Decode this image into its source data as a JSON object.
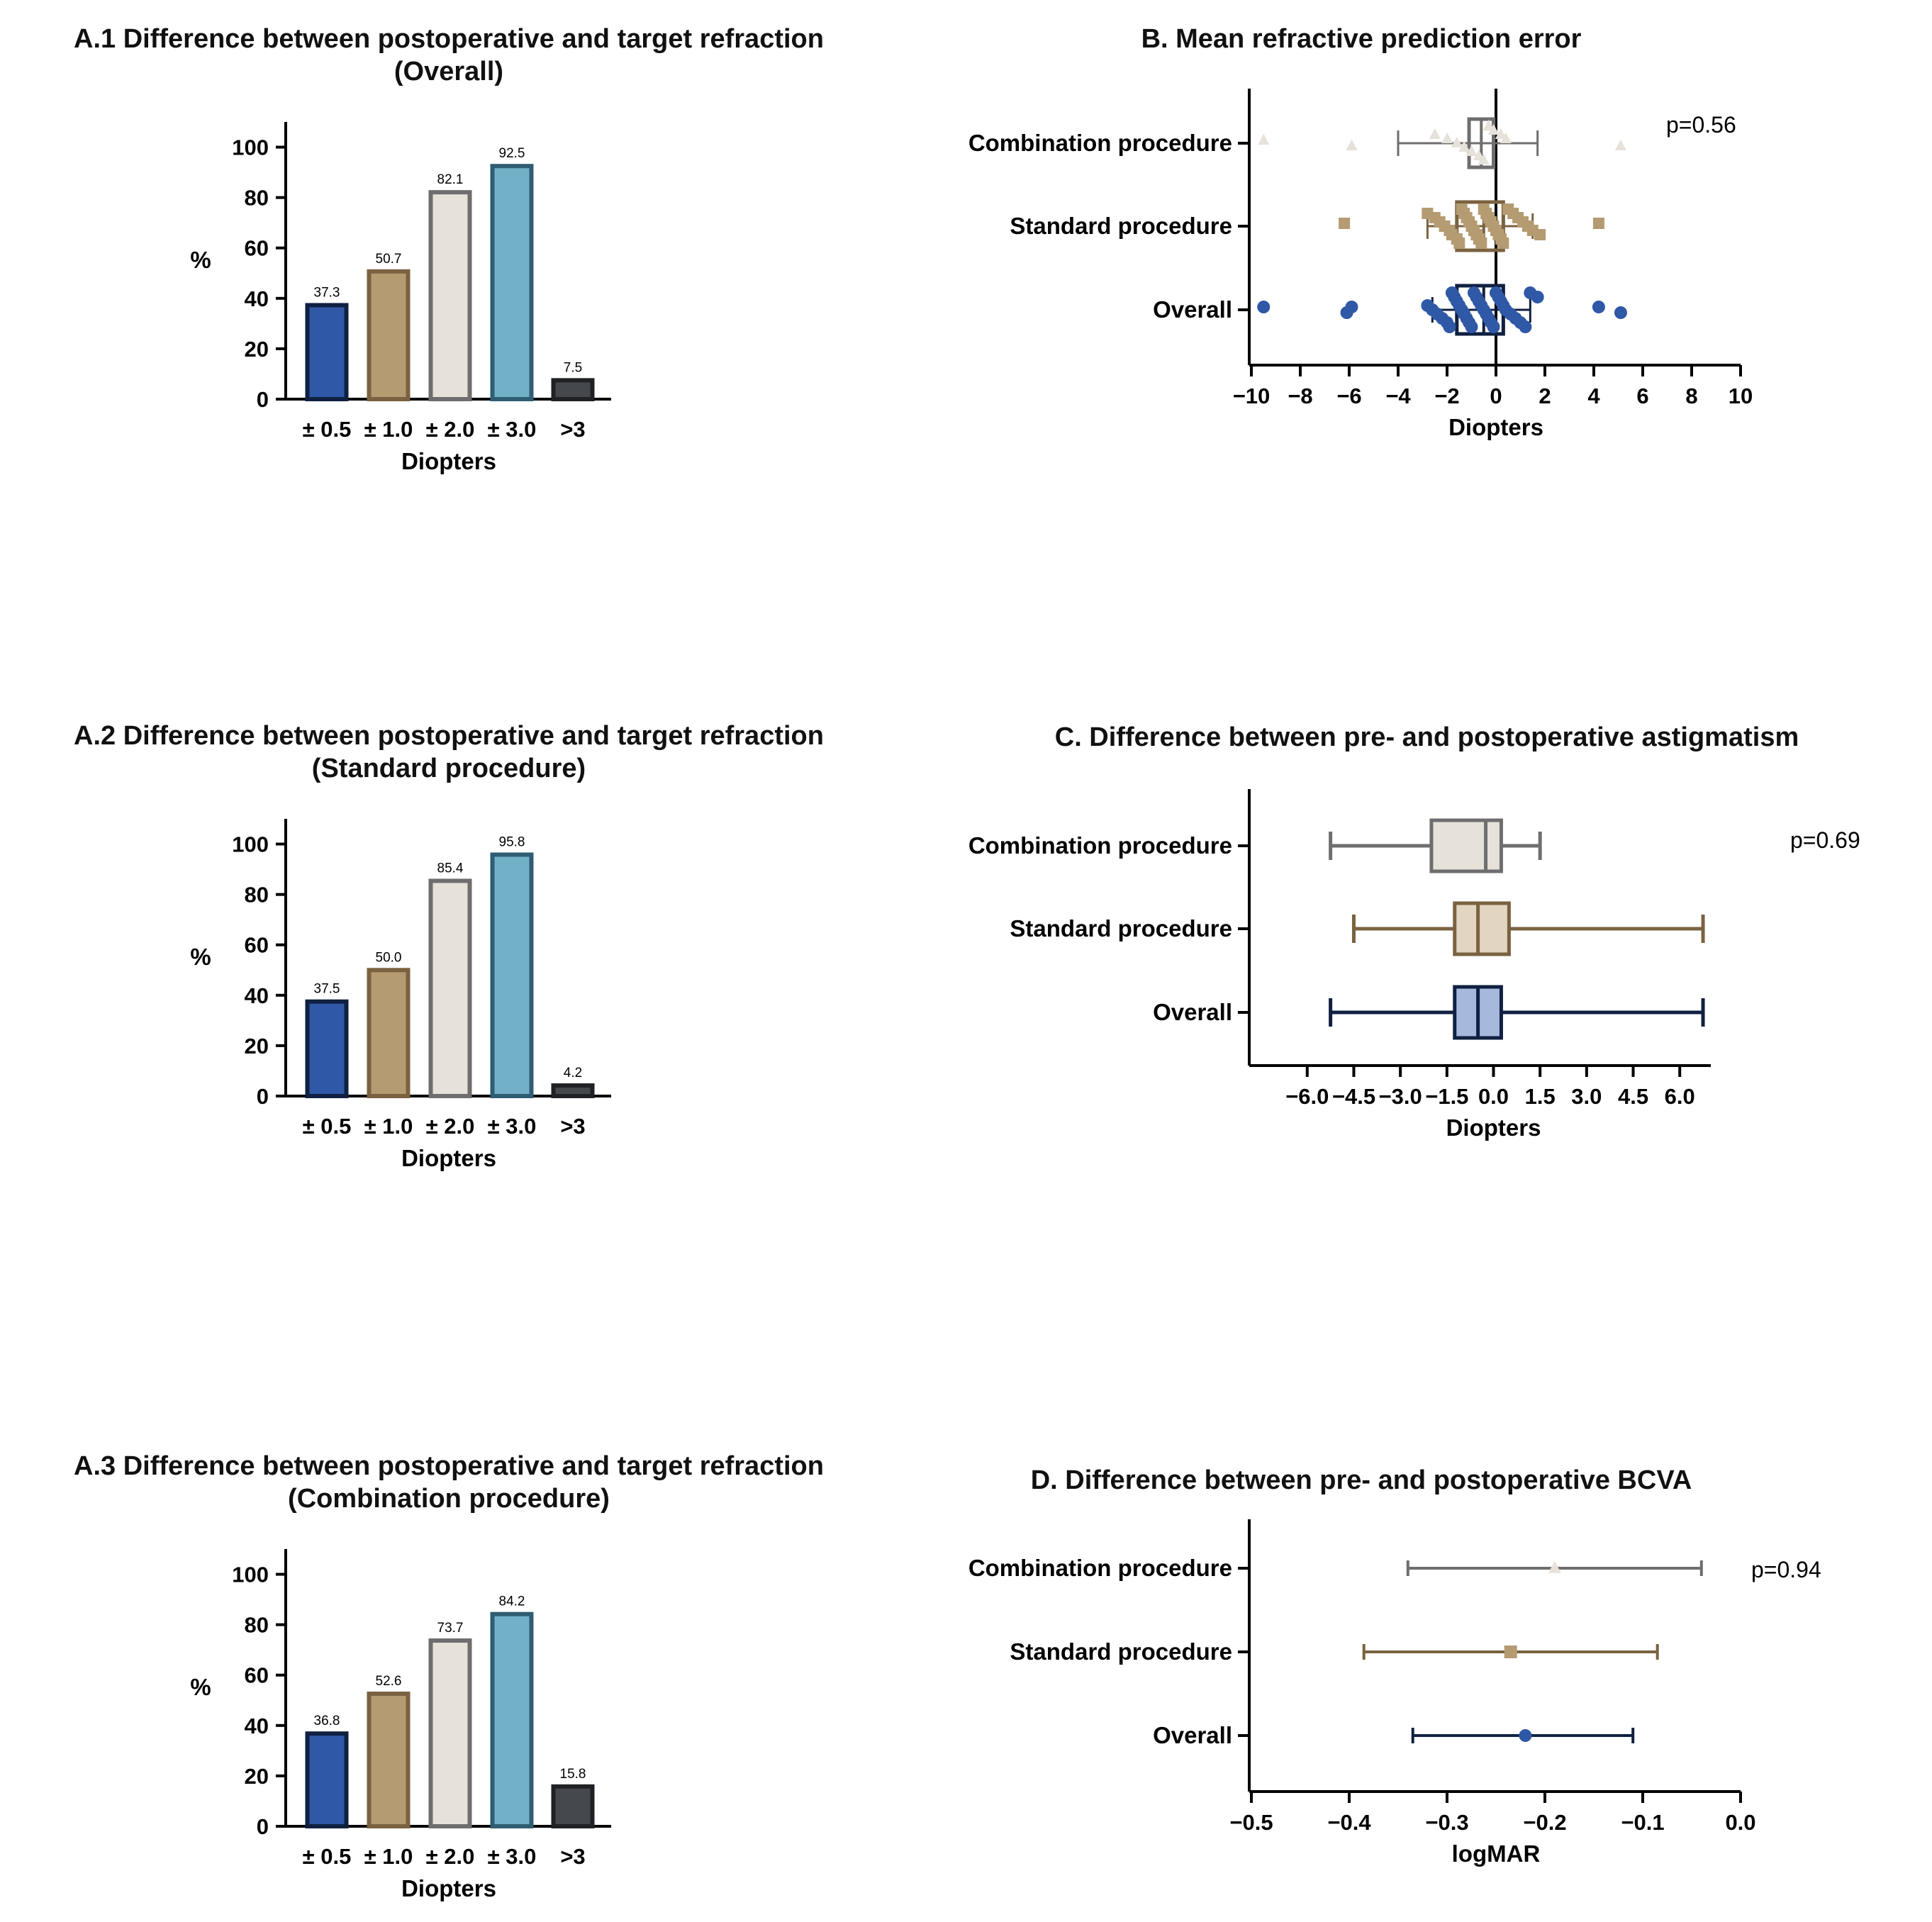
{
  "colors": {
    "overall": "#2f58a6",
    "overall_dark": "#102040",
    "overall_light": "#a6b8dc",
    "standard": "#b59b72",
    "standard_dark": "#7a6240",
    "standard_light": "#e2d5c2",
    "combination": "#e6e2da",
    "combination_dark": "#6e6e6e",
    "pm3": "#72b0c8",
    "pm3_dark": "#2f5d72",
    "gt3": "#45484c",
    "gt3_dark": "#1f2124"
  },
  "chart_data": [
    {
      "id": "A1",
      "type": "bar",
      "title": "A.1 Difference between postoperative and target refraction",
      "subtitle": "(Overall)",
      "xlabel": "Diopters",
      "ylabel": "%",
      "ylim": [
        0,
        110
      ],
      "yticks": [
        0,
        20,
        40,
        60,
        80,
        100
      ],
      "categories": [
        "± 0.5",
        "± 1.0",
        "± 2.0",
        "± 3.0",
        ">3"
      ],
      "values": [
        37.3,
        50.7,
        82.1,
        92.5,
        7.5
      ],
      "value_labels": [
        "37.3",
        "50.7",
        "82.1",
        "92.5",
        "7.5"
      ]
    },
    {
      "id": "A2",
      "type": "bar",
      "title": "A.2 Difference between postoperative and target refraction",
      "subtitle": "(Standard procedure)",
      "xlabel": "Diopters",
      "ylabel": "%",
      "ylim": [
        0,
        110
      ],
      "yticks": [
        0,
        20,
        40,
        60,
        80,
        100
      ],
      "categories": [
        "± 0.5",
        "± 1.0",
        "± 2.0",
        "± 3.0",
        ">3"
      ],
      "values": [
        37.5,
        50.0,
        85.4,
        95.8,
        4.2
      ],
      "value_labels": [
        "37.5",
        "50.0",
        "85.4",
        "95.8",
        "4.2"
      ]
    },
    {
      "id": "A3",
      "type": "bar",
      "title": "A.3 Difference between postoperative and target refraction",
      "subtitle": "(Combination procedure)",
      "xlabel": "Diopters",
      "ylabel": "%",
      "ylim": [
        0,
        110
      ],
      "yticks": [
        0,
        20,
        40,
        60,
        80,
        100
      ],
      "categories": [
        "± 0.5",
        "± 1.0",
        "± 2.0",
        "± 3.0",
        ">3"
      ],
      "values": [
        36.8,
        52.6,
        73.7,
        84.2,
        15.8
      ],
      "value_labels": [
        "36.8",
        "52.6",
        "73.7",
        "84.2",
        "15.8"
      ]
    },
    {
      "id": "B",
      "type": "scatter",
      "title": "B. Mean refractive prediction error",
      "xlabel": "Diopters",
      "xlim": [
        -10,
        10
      ],
      "xticks": [
        -10,
        -8,
        -6,
        -4,
        -2,
        0,
        2,
        4,
        6,
        8,
        10
      ],
      "xtick_labels": [
        "−10",
        "−8",
        "−6",
        "−4",
        "−2",
        "0",
        "2",
        "4",
        "6",
        "8",
        "10"
      ],
      "p_value": "p=0.56",
      "groups": [
        "Combination procedure",
        "Standard procedure",
        "Overall"
      ],
      "series": [
        {
          "name": "Combination procedure",
          "marker": "triangle",
          "box": {
            "whisker_low": -4.0,
            "q1": -1.1,
            "median": -0.6,
            "q3": -0.1,
            "whisker_high": 1.7
          },
          "points": [
            -9.5,
            -5.9,
            -2.5,
            -2.0,
            -1.6,
            -1.3,
            -1.0,
            -0.7,
            -0.5,
            -0.3,
            -0.1,
            0.2,
            0.4,
            5.1
          ]
        },
        {
          "name": "Standard procedure",
          "marker": "square",
          "box": {
            "whisker_low": -2.8,
            "q1": -1.6,
            "median": -0.5,
            "q3": 0.3,
            "whisker_high": 1.5
          },
          "points": [
            -6.2,
            -2.8,
            -2.5,
            -2.3,
            -2.1,
            -1.9,
            -1.8,
            -1.6,
            -1.5,
            -1.4,
            -1.3,
            -1.2,
            -1.1,
            -1.0,
            -0.9,
            -0.8,
            -0.7,
            -0.6,
            -0.5,
            -0.4,
            -0.3,
            -0.2,
            -0.1,
            0.0,
            0.1,
            0.2,
            0.3,
            0.5,
            0.7,
            0.9,
            1.1,
            1.3,
            1.5,
            1.8,
            4.2
          ]
        },
        {
          "name": "Overall",
          "marker": "circle",
          "box": {
            "whisker_low": -2.6,
            "q1": -1.6,
            "median": -0.5,
            "q3": 0.3,
            "whisker_high": 1.4
          },
          "points": [
            -9.5,
            -6.1,
            -5.9,
            -2.8,
            -2.6,
            -2.4,
            -2.2,
            -2.0,
            -1.9,
            -1.8,
            -1.7,
            -1.6,
            -1.5,
            -1.4,
            -1.3,
            -1.2,
            -1.1,
            -1.0,
            -0.9,
            -0.8,
            -0.7,
            -0.6,
            -0.5,
            -0.4,
            -0.3,
            -0.2,
            -0.1,
            0.0,
            0.1,
            0.2,
            0.3,
            0.4,
            0.6,
            0.8,
            1.0,
            1.2,
            1.4,
            1.7,
            4.2,
            5.1
          ]
        }
      ]
    },
    {
      "id": "C",
      "type": "box",
      "title": "C. Difference between pre- and postoperative astigmatism",
      "xlabel": "Diopters",
      "xlim": [
        -7.0,
        7.0
      ],
      "xticks": [
        -6.0,
        -4.5,
        -3.0,
        -1.5,
        0.0,
        1.5,
        3.0,
        4.5,
        6.0
      ],
      "xtick_labels": [
        "−6.0",
        "−4.5",
        "−3.0",
        "−1.5",
        "0.0",
        "1.5",
        "3.0",
        "4.5",
        "6.0"
      ],
      "p_value": "p=0.69",
      "groups": [
        "Combination procedure",
        "Standard procedure",
        "Overall"
      ],
      "series": [
        {
          "name": "Combination procedure",
          "min": -5.25,
          "q1": -2.0,
          "median": -0.25,
          "q3": 0.25,
          "max": 1.5
        },
        {
          "name": "Standard procedure",
          "min": -4.5,
          "q1": -1.25,
          "median": -0.5,
          "q3": 0.5,
          "max": 6.75
        },
        {
          "name": "Overall",
          "min": -5.25,
          "q1": -1.25,
          "median": -0.5,
          "q3": 0.25,
          "max": 6.75
        }
      ]
    },
    {
      "id": "D",
      "type": "errorbar",
      "title": "D. Difference between pre- and postoperative BCVA",
      "xlabel": "logMAR",
      "xlim": [
        -0.5,
        0.0
      ],
      "xticks": [
        -0.5,
        -0.4,
        -0.3,
        -0.2,
        -0.1,
        0.0
      ],
      "xtick_labels": [
        "−0.5",
        "−0.4",
        "−0.3",
        "−0.2",
        "−0.1",
        "0.0"
      ],
      "p_value": "p=0.94",
      "groups": [
        "Combination procedure",
        "Standard procedure",
        "Overall"
      ],
      "series": [
        {
          "name": "Combination procedure",
          "marker": "triangle",
          "mean": -0.19,
          "low": -0.34,
          "high": -0.04
        },
        {
          "name": "Standard procedure",
          "marker": "square",
          "mean": -0.235,
          "low": -0.385,
          "high": -0.085
        },
        {
          "name": "Overall",
          "marker": "circle",
          "mean": -0.22,
          "low": -0.335,
          "high": -0.11
        }
      ]
    }
  ]
}
